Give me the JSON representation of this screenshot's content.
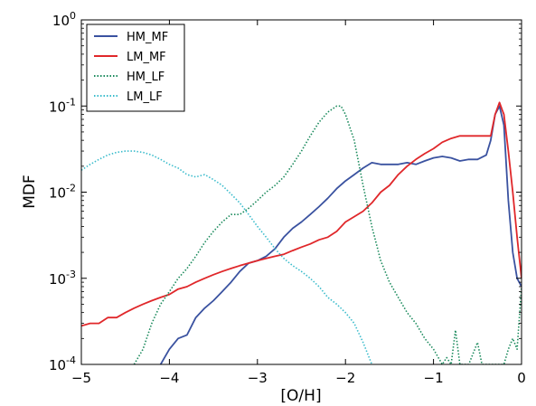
{
  "chart_data": {
    "type": "line",
    "xlabel": "[O/H]",
    "ylabel": "MDF",
    "xlim": [
      -5,
      0
    ],
    "ylim": [
      0.0001,
      1
    ],
    "yscale": "log",
    "x_ticks": [
      {
        "value": -5,
        "label": "−5"
      },
      {
        "value": -4,
        "label": "−4"
      },
      {
        "value": -3,
        "label": "−3"
      },
      {
        "value": -2,
        "label": "−2"
      },
      {
        "value": -1,
        "label": "−1"
      },
      {
        "value": 0,
        "label": "0"
      }
    ],
    "y_ticks": [
      {
        "value": 0.0001,
        "base": "10",
        "exp": "-4"
      },
      {
        "value": 0.001,
        "base": "10",
        "exp": "-3"
      },
      {
        "value": 0.01,
        "base": "10",
        "exp": "-2"
      },
      {
        "value": 0.1,
        "base": "10",
        "exp": "-1"
      },
      {
        "value": 1,
        "base": "10",
        "exp": "0"
      }
    ],
    "legend_position": "top-left",
    "grid": false,
    "series": [
      {
        "name": "HM_MF",
        "color": "#3a52a0",
        "style": "solid",
        "x": [
          -4.1,
          -4.0,
          -3.9,
          -3.8,
          -3.7,
          -3.6,
          -3.5,
          -3.4,
          -3.3,
          -3.2,
          -3.1,
          -3.0,
          -2.9,
          -2.8,
          -2.7,
          -2.6,
          -2.5,
          -2.4,
          -2.3,
          -2.2,
          -2.1,
          -2.0,
          -1.9,
          -1.8,
          -1.7,
          -1.6,
          -1.5,
          -1.4,
          -1.3,
          -1.2,
          -1.1,
          -1.0,
          -0.9,
          -0.8,
          -0.7,
          -0.6,
          -0.5,
          -0.4,
          -0.35,
          -0.3,
          -0.25,
          -0.2,
          -0.15,
          -0.1,
          -0.05,
          0.0
        ],
        "y": [
          0.0001,
          0.00015,
          0.0002,
          0.00022,
          0.00035,
          0.00045,
          0.00055,
          0.0007,
          0.0009,
          0.0012,
          0.0015,
          0.0016,
          0.0018,
          0.0022,
          0.003,
          0.0038,
          0.0045,
          0.0055,
          0.0068,
          0.0085,
          0.011,
          0.0135,
          0.016,
          0.019,
          0.022,
          0.021,
          0.021,
          0.021,
          0.022,
          0.021,
          0.023,
          0.025,
          0.026,
          0.025,
          0.023,
          0.024,
          0.024,
          0.027,
          0.04,
          0.08,
          0.1,
          0.06,
          0.008,
          0.002,
          0.001,
          0.0008
        ]
      },
      {
        "name": "LM_MF",
        "color": "#e0272a",
        "style": "solid",
        "x": [
          -5.0,
          -4.9,
          -4.8,
          -4.7,
          -4.6,
          -4.5,
          -4.4,
          -4.3,
          -4.2,
          -4.1,
          -4.0,
          -3.9,
          -3.8,
          -3.7,
          -3.6,
          -3.5,
          -3.4,
          -3.3,
          -3.2,
          -3.1,
          -3.0,
          -2.9,
          -2.8,
          -2.7,
          -2.6,
          -2.5,
          -2.4,
          -2.3,
          -2.2,
          -2.1,
          -2.0,
          -1.9,
          -1.8,
          -1.7,
          -1.6,
          -1.5,
          -1.4,
          -1.3,
          -1.2,
          -1.1,
          -1.0,
          -0.9,
          -0.8,
          -0.7,
          -0.6,
          -0.5,
          -0.4,
          -0.35,
          -0.3,
          -0.25,
          -0.22,
          -0.2,
          -0.15,
          -0.1,
          -0.05,
          0.0
        ],
        "y": [
          0.00028,
          0.0003,
          0.0003,
          0.00035,
          0.00035,
          0.0004,
          0.00045,
          0.0005,
          0.00055,
          0.0006,
          0.00065,
          0.00075,
          0.0008,
          0.0009,
          0.001,
          0.0011,
          0.0012,
          0.0013,
          0.0014,
          0.0015,
          0.0016,
          0.0017,
          0.0018,
          0.0019,
          0.0021,
          0.0023,
          0.0025,
          0.0028,
          0.003,
          0.0035,
          0.0045,
          0.0052,
          0.006,
          0.0075,
          0.01,
          0.012,
          0.016,
          0.02,
          0.024,
          0.028,
          0.032,
          0.038,
          0.042,
          0.045,
          0.045,
          0.045,
          0.045,
          0.045,
          0.08,
          0.11,
          0.09,
          0.08,
          0.03,
          0.01,
          0.003,
          0.001
        ]
      },
      {
        "name": "HM_LF",
        "color": "#1a8a5c",
        "style": "dotted",
        "x": [
          -4.4,
          -4.3,
          -4.2,
          -4.1,
          -4.0,
          -3.9,
          -3.8,
          -3.7,
          -3.6,
          -3.5,
          -3.4,
          -3.3,
          -3.2,
          -3.1,
          -3.0,
          -2.9,
          -2.8,
          -2.7,
          -2.6,
          -2.5,
          -2.4,
          -2.3,
          -2.2,
          -2.1,
          -2.05,
          -2.0,
          -1.9,
          -1.8,
          -1.7,
          -1.6,
          -1.5,
          -1.4,
          -1.3,
          -1.2,
          -1.1,
          -1.0,
          -0.9,
          -0.85,
          -0.8,
          -0.75,
          -0.7,
          -0.6,
          -0.5,
          -0.45,
          -0.4,
          -0.35,
          -0.3,
          -0.25,
          -0.2,
          -0.15,
          -0.1,
          -0.05,
          0.0
        ],
        "y": [
          0.0001,
          0.00015,
          0.0003,
          0.0005,
          0.0007,
          0.001,
          0.0013,
          0.0018,
          0.0026,
          0.0035,
          0.0045,
          0.0055,
          0.0055,
          0.0065,
          0.008,
          0.01,
          0.012,
          0.015,
          0.021,
          0.03,
          0.045,
          0.065,
          0.085,
          0.1,
          0.1,
          0.08,
          0.04,
          0.012,
          0.004,
          0.0016,
          0.0009,
          0.0006,
          0.0004,
          0.0003,
          0.0002,
          0.00015,
          0.0001,
          0.00012,
          0.0001,
          0.00025,
          0.0001,
          0.0001,
          0.00018,
          0.0001,
          0.0001,
          0.0001,
          0.0001,
          0.0001,
          0.0001,
          0.00015,
          0.0002,
          0.00015,
          0.0008
        ]
      },
      {
        "name": "LM_LF",
        "color": "#3bbccc",
        "style": "dotted",
        "x": [
          -5.0,
          -4.9,
          -4.8,
          -4.7,
          -4.6,
          -4.5,
          -4.4,
          -4.3,
          -4.2,
          -4.1,
          -4.0,
          -3.9,
          -3.8,
          -3.7,
          -3.6,
          -3.5,
          -3.4,
          -3.3,
          -3.2,
          -3.1,
          -3.0,
          -2.9,
          -2.8,
          -2.7,
          -2.6,
          -2.5,
          -2.4,
          -2.3,
          -2.2,
          -2.1,
          -2.0,
          -1.9,
          -1.8,
          -1.7
        ],
        "y": [
          0.018,
          0.021,
          0.024,
          0.027,
          0.029,
          0.03,
          0.03,
          0.029,
          0.027,
          0.024,
          0.021,
          0.019,
          0.016,
          0.015,
          0.016,
          0.014,
          0.012,
          0.0095,
          0.0075,
          0.0055,
          0.004,
          0.003,
          0.0022,
          0.0017,
          0.0014,
          0.0012,
          0.001,
          0.0008,
          0.0006,
          0.0005,
          0.0004,
          0.0003,
          0.00018,
          0.0001
        ]
      }
    ]
  }
}
